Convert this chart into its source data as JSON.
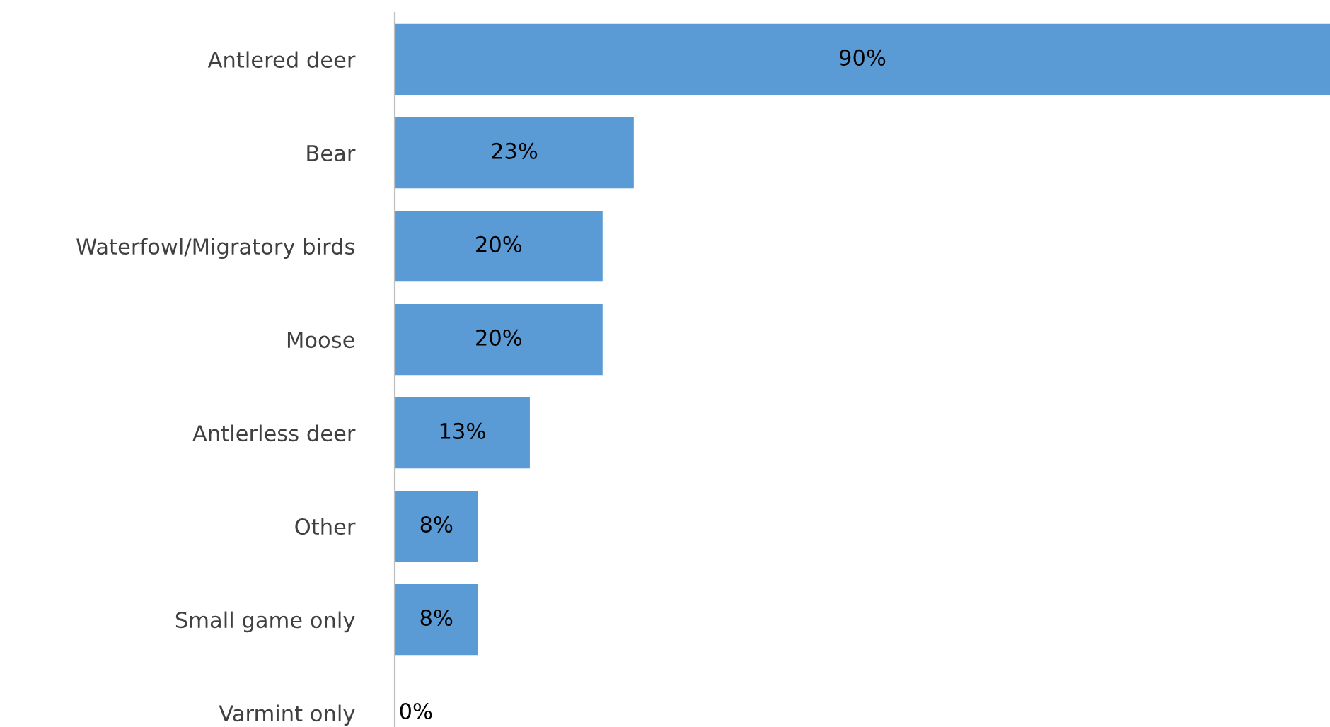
{
  "chart_data": {
    "type": "bar",
    "orientation": "horizontal",
    "categories": [
      "Antlered deer",
      "Bear",
      "Waterfowl/Migratory birds",
      "Moose",
      "Antlerless deer",
      "Other",
      "Small game only",
      "Varmint only"
    ],
    "values": [
      90,
      23,
      20,
      20,
      13,
      8,
      8,
      0
    ],
    "value_labels": [
      "90%",
      "23%",
      "20%",
      "20%",
      "13%",
      "8%",
      "8%",
      "0%"
    ],
    "color": "#5b9bd5"
  }
}
